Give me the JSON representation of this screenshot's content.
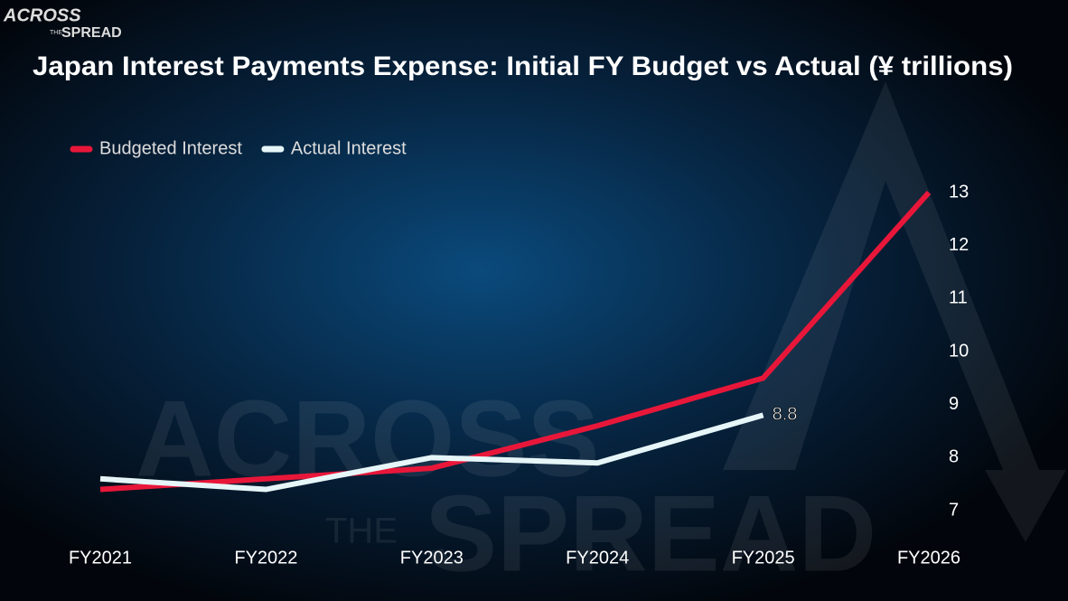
{
  "logo": {
    "line1": "ACROSS",
    "line2": "THE",
    "line3": "SPREAD"
  },
  "chart_data": {
    "type": "line",
    "title": "Japan Interest Payments Expense: Initial FY Budget vs Actual (¥ trillions)",
    "categories": [
      "FY2021",
      "FY2022",
      "FY2023",
      "FY2024",
      "FY2025",
      "FY2026"
    ],
    "series": [
      {
        "name": "Budgeted Interest",
        "color": "#e8173a",
        "values": [
          7.4,
          7.6,
          7.8,
          8.6,
          9.5,
          13.0
        ]
      },
      {
        "name": "Actual Interest",
        "color": "#e6f6f8",
        "values": [
          7.6,
          7.4,
          8.0,
          7.9,
          8.8,
          null
        ],
        "data_label": "last"
      }
    ],
    "ylim": [
      7,
      13
    ],
    "yticks": [
      7,
      8,
      9,
      10,
      11,
      12,
      13
    ],
    "y_axis_side": "right",
    "grid": false,
    "legend": "top-left"
  }
}
